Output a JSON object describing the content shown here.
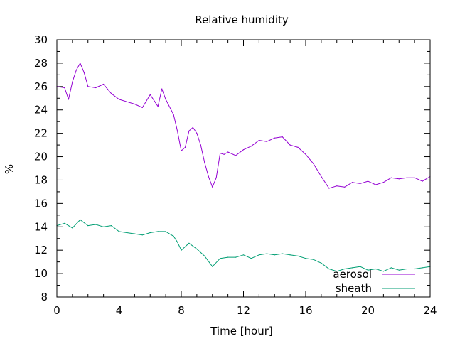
{
  "chart_data": {
    "type": "line",
    "title": "Relative humidity",
    "xlabel": "Time [hour]",
    "ylabel": "%",
    "xlim": [
      0,
      24
    ],
    "ylim": [
      8,
      30
    ],
    "xticks": [
      0,
      4,
      8,
      12,
      16,
      20,
      24
    ],
    "yticks": [
      8,
      10,
      12,
      14,
      16,
      18,
      20,
      22,
      24,
      26,
      28,
      30
    ],
    "x_minor_step": 1,
    "y_minor_step": 1,
    "grid": false,
    "legend_position": "bottom-right",
    "series": [
      {
        "name": "aerosol",
        "color": "#9400d3",
        "x": [
          0,
          0.5,
          0.75,
          1.0,
          1.25,
          1.5,
          1.75,
          2.0,
          2.5,
          3.0,
          3.5,
          4.0,
          4.5,
          5.0,
          5.5,
          6.0,
          6.5,
          6.75,
          7.0,
          7.5,
          7.75,
          8.0,
          8.25,
          8.5,
          8.75,
          9.0,
          9.25,
          9.5,
          9.75,
          10.0,
          10.25,
          10.5,
          10.75,
          11.0,
          11.5,
          12.0,
          12.5,
          13.0,
          13.5,
          14.0,
          14.5,
          15.0,
          15.5,
          16.0,
          16.5,
          17.0,
          17.5,
          18.0,
          18.5,
          19.0,
          19.5,
          20.0,
          20.5,
          21.0,
          21.5,
          22.0,
          22.5,
          23.0,
          23.5,
          24.0
        ],
        "values": [
          26.0,
          25.9,
          24.9,
          26.4,
          27.4,
          28.0,
          27.2,
          26.0,
          25.9,
          26.2,
          25.4,
          24.9,
          24.7,
          24.5,
          24.2,
          25.3,
          24.3,
          25.8,
          24.9,
          23.6,
          22.2,
          20.5,
          20.8,
          22.2,
          22.5,
          22.0,
          21.0,
          19.5,
          18.3,
          17.4,
          18.2,
          20.3,
          20.2,
          20.4,
          20.1,
          20.6,
          20.9,
          21.4,
          21.3,
          21.6,
          21.7,
          21.0,
          20.8,
          20.2,
          19.4,
          18.3,
          17.3,
          17.5,
          17.4,
          17.8,
          17.7,
          17.9,
          17.6,
          17.8,
          18.2,
          18.1,
          18.2,
          18.2,
          17.9,
          18.3
        ]
      },
      {
        "name": "sheath",
        "color": "#009e73",
        "x": [
          0,
          0.5,
          1.0,
          1.5,
          2.0,
          2.5,
          3.0,
          3.5,
          4.0,
          4.5,
          5.0,
          5.5,
          6.0,
          6.5,
          7.0,
          7.5,
          7.75,
          8.0,
          8.5,
          9.0,
          9.5,
          10.0,
          10.5,
          11.0,
          11.5,
          12.0,
          12.5,
          13.0,
          13.5,
          14.0,
          14.5,
          15.0,
          15.5,
          16.0,
          16.5,
          17.0,
          17.5,
          18.0,
          18.5,
          19.0,
          19.5,
          20.0,
          20.5,
          21.0,
          21.5,
          22.0,
          22.5,
          23.0,
          23.5,
          24.0
        ],
        "values": [
          14.1,
          14.3,
          13.9,
          14.6,
          14.1,
          14.2,
          14.0,
          14.1,
          13.6,
          13.5,
          13.4,
          13.3,
          13.5,
          13.6,
          13.6,
          13.2,
          12.7,
          12.0,
          12.6,
          12.1,
          11.5,
          10.6,
          11.3,
          11.4,
          11.4,
          11.6,
          11.3,
          11.6,
          11.7,
          11.6,
          11.7,
          11.6,
          11.5,
          11.3,
          11.2,
          10.9,
          10.4,
          10.2,
          10.4,
          10.5,
          10.6,
          10.3,
          10.4,
          10.2,
          10.5,
          10.3,
          10.4,
          10.4,
          10.5,
          10.6
        ]
      }
    ]
  }
}
